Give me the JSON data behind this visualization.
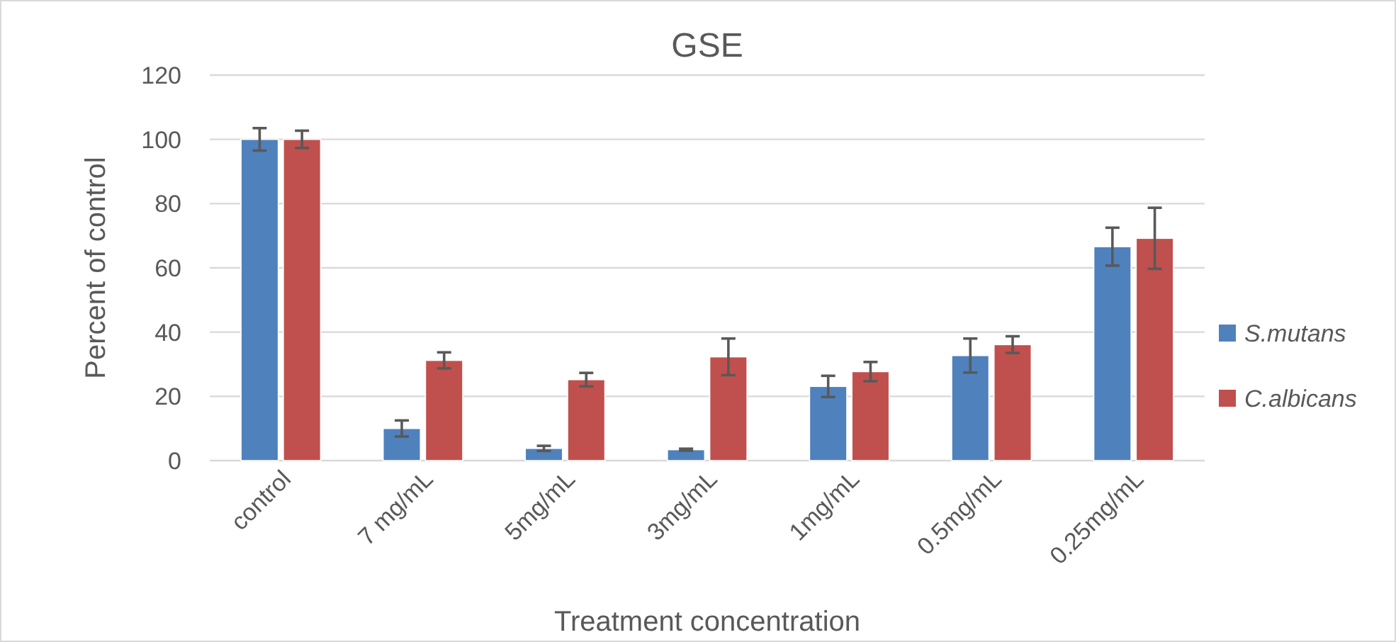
{
  "chart_data": {
    "type": "bar",
    "title": "GSE",
    "xlabel": "Treatment concentration",
    "ylabel": "Percent of control",
    "categories": [
      "control",
      "7 mg/mL",
      "5mg/mL",
      "3mg/mL",
      "1mg/mL",
      "0.5mg/mL",
      "0.25mg/mL"
    ],
    "series": [
      {
        "name": "S.mutans",
        "color": "#4f81bd",
        "values": [
          100,
          10,
          3.8,
          3.4,
          23.1,
          32.7,
          66.6
        ],
        "errors": [
          3.5,
          2.5,
          0.8,
          0.3,
          3.3,
          5.3,
          5.9
        ]
      },
      {
        "name": "C.albicans",
        "color": "#c0504d",
        "values": [
          100,
          31.2,
          25.2,
          32.3,
          27.7,
          36.1,
          69.2
        ],
        "errors": [
          2.7,
          2.5,
          2.1,
          5.7,
          3,
          2.6,
          9.5
        ]
      }
    ],
    "ylim": [
      0,
      120
    ],
    "yticks": [
      0,
      20,
      40,
      60,
      80,
      100,
      120
    ],
    "grid": "y",
    "legend": "right"
  }
}
